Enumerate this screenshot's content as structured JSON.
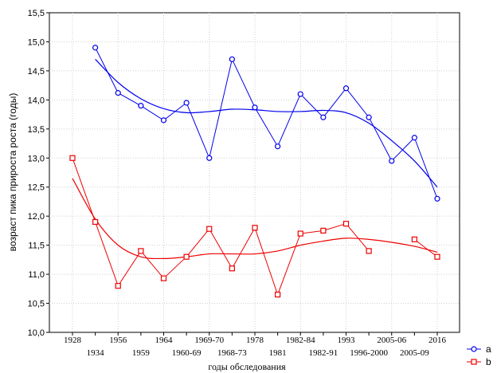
{
  "chart_data": {
    "type": "line",
    "xlabel": "годы обследования",
    "ylabel": "возраст пика прироста роста (годы)",
    "ylim": [
      10.0,
      15.5
    ],
    "yticks": [
      "10,0",
      "10,5",
      "11,0",
      "11,5",
      "12,0",
      "12,5",
      "13,0",
      "13,5",
      "14,0",
      "14,5",
      "15,0",
      "15,5"
    ],
    "categories": [
      "1928",
      "1934",
      "1956",
      "1959",
      "1964",
      "1960-69",
      "1969-70",
      "1968-73",
      "1978",
      "1981",
      "1982-84",
      "1982-91",
      "1993",
      "1996-2000",
      "2005-06",
      "2005-09",
      "2016"
    ],
    "grid": true,
    "legend_position": "bottom-right",
    "series": [
      {
        "name": "a",
        "color": "#0000ee",
        "marker": "circle",
        "values": [
          null,
          14.9,
          14.12,
          13.9,
          13.65,
          13.95,
          13.0,
          14.7,
          13.87,
          13.2,
          14.1,
          13.7,
          14.2,
          13.7,
          12.95,
          13.35,
          12.3
        ],
        "trend": [
          null,
          14.7,
          14.3,
          14.02,
          13.85,
          13.78,
          13.8,
          13.84,
          13.83,
          13.8,
          13.8,
          13.82,
          13.78,
          13.6,
          13.3,
          12.95,
          12.5
        ]
      },
      {
        "name": "b",
        "color": "#ee0000",
        "marker": "square",
        "values": [
          13.0,
          11.9,
          10.8,
          11.4,
          10.93,
          11.3,
          11.78,
          11.1,
          11.8,
          10.65,
          11.7,
          11.75,
          11.87,
          11.4,
          null,
          11.6,
          11.3
        ],
        "trend": [
          12.65,
          11.95,
          11.5,
          11.3,
          11.27,
          11.3,
          11.35,
          11.35,
          11.35,
          11.4,
          11.5,
          11.57,
          11.62,
          11.6,
          11.55,
          11.48,
          11.38
        ]
      }
    ]
  }
}
